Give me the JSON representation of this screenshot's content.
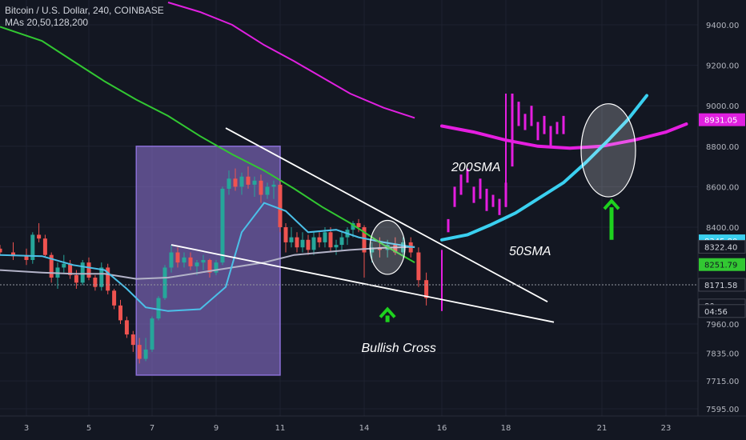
{
  "header": {
    "symbol": "Bitcoin / U.S. Dollar, 240, COINBASE",
    "indicators": "MAs 20,50,128,200"
  },
  "annotations": {
    "sma200": "200SMA",
    "sma50": "50SMA",
    "bullish_cross": "Bullish Cross"
  },
  "colors": {
    "background": "#131722",
    "up": "#26a69a",
    "down": "#ef5350",
    "ma20": "#b3b3c8",
    "ma50": "#4bc0e8",
    "ma128": "#32c832",
    "ma200": "#e020e0",
    "projection_ma": "#e51ee0",
    "projection_sma50": "#3ad0f0",
    "wedge": "#ffffff",
    "arrow": "#1ed21e",
    "box": "#8a6fd6"
  },
  "chart_data": {
    "type": "candlestick",
    "title": "Bitcoin / U.S. Dollar, 240, COINBASE",
    "ylim": [
      7560,
      9540
    ],
    "xlim": [
      2.6,
      24.1
    ],
    "y_ticks": [
      9400,
      9200,
      9000,
      8800,
      8600,
      8400,
      7960,
      7835,
      7715,
      7595
    ],
    "x_ticks": [
      "3",
      "5",
      "7",
      "9",
      "11",
      "14",
      "16",
      "18",
      "21",
      "23"
    ],
    "x_tick_values": [
      3,
      5,
      7,
      9,
      11,
      14,
      16,
      18,
      21,
      23
    ],
    "price_tags": [
      {
        "value": 9400,
        "label": "9400.00"
      },
      {
        "value": 9200,
        "label": "9200.00"
      },
      {
        "value": 9000,
        "label": "9000.00"
      },
      {
        "value": 8800,
        "label": "8800.00"
      },
      {
        "value": 8600,
        "label": "8600.00"
      },
      {
        "value": 8400,
        "label": "8400.00"
      },
      {
        "value": 8931.05,
        "label": "8931.05",
        "color": "#e020e0"
      },
      {
        "value": 8345.8,
        "label": "8345.80",
        "color": "#3ad0f0"
      },
      {
        "value": 8322.4,
        "label": "8322.40",
        "color": "#131722"
      },
      {
        "value": 8251.79,
        "label": "8251.79",
        "color": "#32c832"
      },
      {
        "value": 8171.58,
        "label": "8171.58",
        "color": "#131722"
      },
      {
        "value": 8060,
        "label": "80",
        "color": "#131722"
      },
      {
        "value": 8030,
        "label": "04:56",
        "color": "#131722"
      },
      {
        "value": 7960,
        "label": "7960.00"
      },
      {
        "value": 7835,
        "label": "7835.00"
      },
      {
        "value": 7715,
        "label": "7715.00"
      },
      {
        "value": 7595,
        "label": "7595.00"
      }
    ],
    "candles": [
      [
        2.6,
        8315,
        8330,
        8290,
        8300
      ],
      [
        2.8,
        8300,
        8340,
        8270,
        8285
      ],
      [
        3.0,
        8285,
        8315,
        8250,
        8270
      ],
      [
        3.2,
        8270,
        8380,
        8255,
        8370
      ],
      [
        3.4,
        8370,
        8420,
        8340,
        8355
      ],
      [
        3.6,
        8355,
        8370,
        8280,
        8290
      ],
      [
        3.8,
        8290,
        8300,
        8180,
        8200
      ],
      [
        4.0,
        8200,
        8260,
        8150,
        8240
      ],
      [
        4.2,
        8240,
        8290,
        8220,
        8255
      ],
      [
        4.4,
        8255,
        8270,
        8195,
        8210
      ],
      [
        4.6,
        8210,
        8230,
        8150,
        8180
      ],
      [
        4.8,
        8180,
        8270,
        8170,
        8260
      ],
      [
        5.0,
        8260,
        8280,
        8190,
        8200
      ],
      [
        5.2,
        8200,
        8210,
        8140,
        8160
      ],
      [
        5.4,
        8160,
        8260,
        8140,
        8240
      ],
      [
        5.6,
        8240,
        8255,
        8120,
        8140
      ],
      [
        5.8,
        8140,
        8150,
        8040,
        8060
      ],
      [
        6.0,
        8060,
        8090,
        7960,
        7980
      ],
      [
        6.2,
        7980,
        8000,
        7900,
        7915
      ],
      [
        6.4,
        7915,
        7930,
        7840,
        7870
      ],
      [
        6.6,
        7870,
        7900,
        7790,
        7810
      ],
      [
        6.8,
        7810,
        7900,
        7800,
        7850
      ],
      [
        7.0,
        7850,
        8000,
        7840,
        7990
      ],
      [
        7.2,
        7990,
        8110,
        7980,
        8100
      ],
      [
        7.4,
        8100,
        8250,
        8090,
        8240
      ],
      [
        7.6,
        8240,
        8330,
        8220,
        8300
      ],
      [
        7.8,
        8300,
        8320,
        8240,
        8260
      ],
      [
        8.0,
        8260,
        8300,
        8240,
        8280
      ],
      [
        8.2,
        8280,
        8300,
        8230,
        8245
      ],
      [
        8.4,
        8245,
        8270,
        8210,
        8260
      ],
      [
        8.6,
        8260,
        8290,
        8230,
        8270
      ],
      [
        8.8,
        8270,
        8275,
        8200,
        8220
      ],
      [
        9.0,
        8220,
        8270,
        8210,
        8260
      ],
      [
        9.2,
        8260,
        8600,
        8250,
        8590
      ],
      [
        9.4,
        8590,
        8680,
        8560,
        8640
      ],
      [
        9.6,
        8640,
        8690,
        8580,
        8600
      ],
      [
        9.8,
        8600,
        8670,
        8560,
        8650
      ],
      [
        10.0,
        8650,
        8700,
        8590,
        8610
      ],
      [
        10.2,
        8610,
        8650,
        8550,
        8630
      ],
      [
        10.4,
        8630,
        8660,
        8520,
        8560
      ],
      [
        10.6,
        8560,
        8620,
        8540,
        8600
      ],
      [
        10.8,
        8600,
        8630,
        8540,
        8610
      ],
      [
        11.0,
        8610,
        8630,
        8380,
        8400
      ],
      [
        11.2,
        8400,
        8420,
        8300,
        8340
      ],
      [
        11.4,
        8340,
        8400,
        8320,
        8360
      ],
      [
        11.6,
        8360,
        8380,
        8300,
        8320
      ],
      [
        11.8,
        8320,
        8380,
        8300,
        8350
      ],
      [
        12.0,
        8350,
        8370,
        8290,
        8310
      ],
      [
        12.2,
        8310,
        8380,
        8290,
        8360
      ],
      [
        12.4,
        8360,
        8380,
        8320,
        8340
      ],
      [
        12.6,
        8340,
        8400,
        8320,
        8380
      ],
      [
        12.8,
        8380,
        8400,
        8300,
        8320
      ],
      [
        13.0,
        8320,
        8350,
        8290,
        8330
      ],
      [
        13.2,
        8330,
        8380,
        8310,
        8360
      ],
      [
        13.4,
        8360,
        8400,
        8330,
        8390
      ],
      [
        13.6,
        8390,
        8430,
        8360,
        8420
      ],
      [
        13.8,
        8420,
        8440,
        8380,
        8400
      ],
      [
        14.0,
        8400,
        8410,
        8200,
        8300
      ],
      [
        14.2,
        8300,
        8340,
        8260,
        8320
      ],
      [
        14.4,
        8320,
        8360,
        8280,
        8310
      ],
      [
        14.6,
        8310,
        8350,
        8280,
        8330
      ],
      [
        14.8,
        8330,
        8360,
        8290,
        8300
      ],
      [
        15.0,
        8300,
        8360,
        8280,
        8340
      ],
      [
        15.2,
        8340,
        8360,
        8280,
        8300
      ],
      [
        15.4,
        8300,
        8320,
        8160,
        8190
      ],
      [
        15.6,
        8190,
        8220,
        8060,
        8100
      ]
    ],
    "projection_bars": [
      [
        16.2,
        8380,
        8440
      ],
      [
        16.4,
        8500,
        8600
      ],
      [
        16.6,
        8560,
        8660
      ],
      [
        16.8,
        8620,
        8690
      ],
      [
        17.0,
        8520,
        8600
      ],
      [
        17.2,
        8540,
        8640
      ],
      [
        17.4,
        8480,
        8590
      ],
      [
        17.6,
        8500,
        8560
      ],
      [
        17.8,
        8460,
        8540
      ],
      [
        18.0,
        8500,
        8620
      ],
      [
        18.2,
        8700,
        9060
      ],
      [
        18.4,
        8900,
        9020
      ],
      [
        18.6,
        8880,
        8960
      ],
      [
        18.8,
        8900,
        9000
      ],
      [
        19.0,
        8830,
        8920
      ],
      [
        19.2,
        8860,
        8950
      ],
      [
        19.4,
        8800,
        8900
      ],
      [
        19.6,
        8860,
        8920
      ],
      [
        19.8,
        8860,
        8950
      ]
    ],
    "projection_spikes": [
      [
        16.0,
        8030,
        8310
      ],
      [
        18.0,
        8500,
        9060
      ]
    ],
    "series": [
      {
        "type": "ma",
        "values": [
          [
            2.6,
            8230
          ],
          [
            3.5,
            8220
          ],
          [
            4.5,
            8215
          ],
          [
            5.5,
            8215
          ],
          [
            6.5,
            8195
          ],
          [
            7.5,
            8200
          ],
          [
            8.5,
            8220
          ],
          [
            9.5,
            8240
          ],
          [
            10.5,
            8260
          ],
          [
            11.5,
            8290
          ],
          [
            12.5,
            8300
          ],
          [
            13.5,
            8310
          ],
          [
            14.5,
            8318
          ],
          [
            15.3,
            8322
          ]
        ]
      },
      {
        "type": "ma",
        "values": [
          [
            2.6,
            8290
          ],
          [
            3.5,
            8285
          ],
          [
            4.5,
            8250
          ],
          [
            5.5,
            8230
          ],
          [
            6.2,
            8150
          ],
          [
            6.8,
            8050
          ],
          [
            7.5,
            8030
          ],
          [
            8.5,
            8040
          ],
          [
            9.3,
            8160
          ],
          [
            9.8,
            8380
          ],
          [
            10.5,
            8520
          ],
          [
            11.2,
            8480
          ],
          [
            12,
            8380
          ],
          [
            13,
            8390
          ],
          [
            13.8,
            8360
          ],
          [
            14.5,
            8340
          ],
          [
            15.3,
            8320
          ]
        ]
      },
      {
        "type": "ma",
        "values": [
          [
            2.6,
            9390
          ],
          [
            3.5,
            9320
          ],
          [
            4.5,
            9220
          ],
          [
            5.5,
            9120
          ],
          [
            6.5,
            9030
          ],
          [
            7.5,
            8950
          ],
          [
            8.5,
            8850
          ],
          [
            9.5,
            8760
          ],
          [
            10.5,
            8680
          ],
          [
            11.5,
            8590
          ],
          [
            12.5,
            8500
          ],
          [
            13.5,
            8420
          ],
          [
            14.5,
            8330
          ],
          [
            15.3,
            8260
          ]
        ]
      },
      {
        "type": "ma",
        "values": [
          [
            7.5,
            9540
          ],
          [
            8.5,
            9480
          ],
          [
            9.5,
            9400
          ],
          [
            10.5,
            9300
          ],
          [
            11.5,
            9220
          ],
          [
            12.5,
            9140
          ],
          [
            13.5,
            9060
          ],
          [
            14.5,
            8990
          ],
          [
            15.3,
            8940
          ]
        ]
      },
      {
        "type": "projection",
        "values": [
          [
            16.0,
            8900
          ],
          [
            17.0,
            8870
          ],
          [
            18.0,
            8830
          ],
          [
            19.0,
            8800
          ],
          [
            20.0,
            8790
          ],
          [
            21.0,
            8800
          ],
          [
            22.0,
            8830
          ],
          [
            23.0,
            8870
          ],
          [
            23.7,
            8910
          ]
        ]
      },
      {
        "type": "projection",
        "values": [
          [
            16.0,
            8350
          ],
          [
            16.8,
            8370
          ],
          [
            17.5,
            8410
          ],
          [
            18.3,
            8470
          ],
          [
            19.0,
            8540
          ],
          [
            19.8,
            8620
          ],
          [
            20.5,
            8720
          ],
          [
            21.2,
            8830
          ],
          [
            21.8,
            8930
          ],
          [
            22.4,
            9050
          ]
        ]
      }
    ],
    "wedge_lines": [
      [
        [
          9.3,
          8890
        ],
        [
          19.3,
          8080
        ]
      ],
      [
        [
          7.6,
          8330
        ],
        [
          19.5,
          7970
        ]
      ]
    ],
    "box": {
      "x": [
        6.5,
        11.0
      ],
      "y": [
        7740,
        8800
      ]
    },
    "ellipses": [
      {
        "cx": 14.6,
        "cy": 8320,
        "rx": 0.45,
        "ry": 110
      },
      {
        "cx": 21.2,
        "cy": 8780,
        "rx": 0.85,
        "ry": 230
      }
    ],
    "arrows": [
      {
        "x": 14.6,
        "y_base": 7970,
        "y_tip": 8040
      },
      {
        "x": 21.3,
        "y_base": 8350,
        "y_tip": 8530
      }
    ],
    "annotation_positions": {
      "sma200": [
        16.3,
        8690
      ],
      "sma50": [
        18.1,
        8300
      ],
      "bullish_cross": [
        13.9,
        7850
      ]
    }
  }
}
